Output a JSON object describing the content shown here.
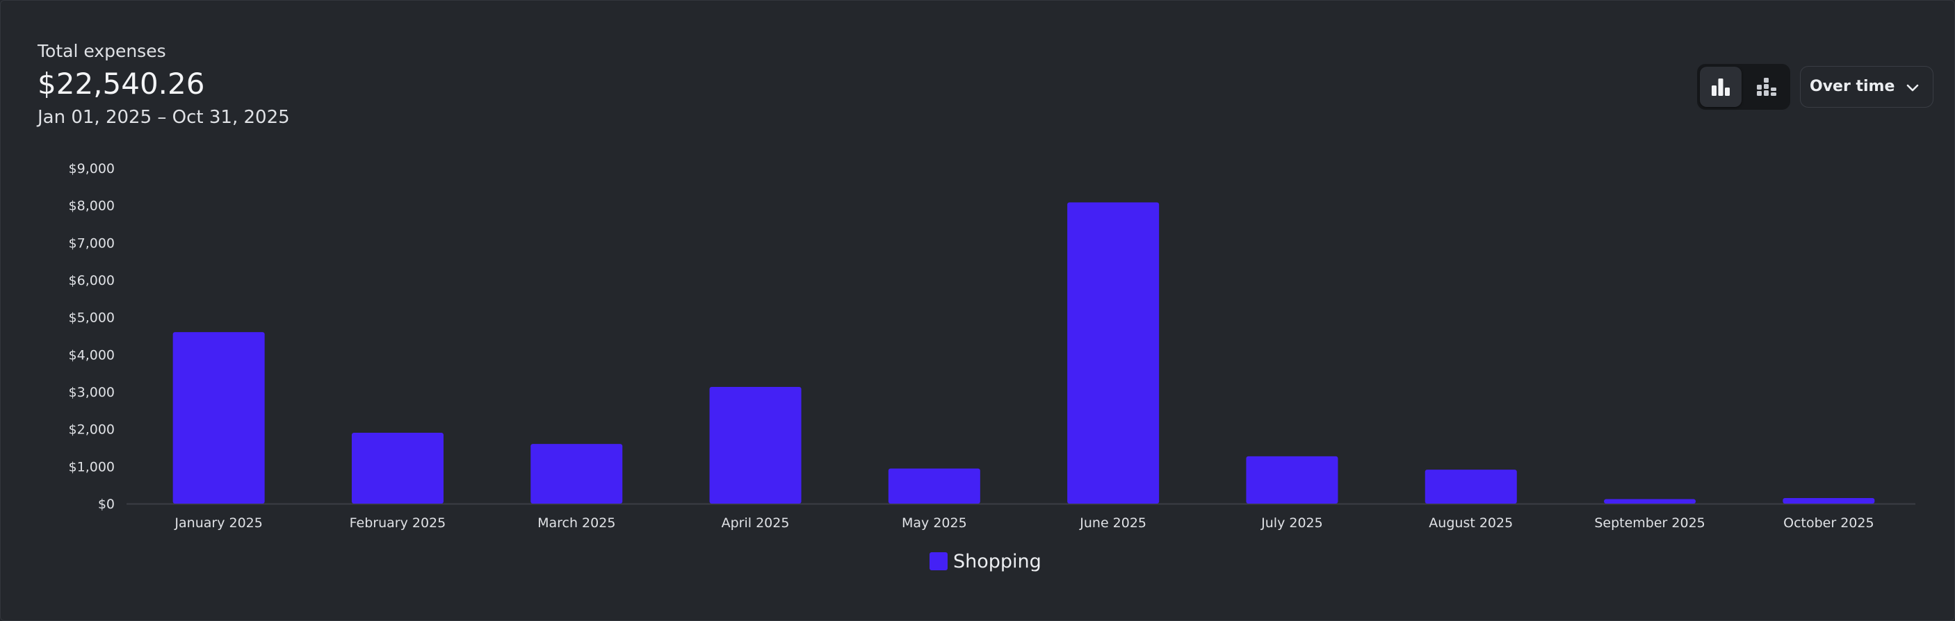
{
  "summary": {
    "label": "Total expenses",
    "amount": "$22,540.26",
    "date_range": "Jan 01, 2025 – Oct 31, 2025"
  },
  "controls": {
    "view_toggle": [
      {
        "icon": "bar-chart-icon",
        "active": true
      },
      {
        "icon": "stacked-bar-chart-icon",
        "active": false
      }
    ],
    "grouping_select": {
      "value": "Over time",
      "icon": "chevron-down-icon"
    }
  },
  "chart_data": {
    "type": "bar",
    "categories": [
      "January 2025",
      "February 2025",
      "March 2025",
      "April 2025",
      "May 2025",
      "June 2025",
      "July 2025",
      "August 2025",
      "September 2025",
      "October 2025"
    ],
    "series": [
      {
        "name": "Shopping",
        "color": "#4421f5",
        "values": [
          4600,
          1900,
          1600,
          3130,
          940,
          8080,
          1270,
          910,
          120,
          150
        ]
      }
    ],
    "ylim": [
      0,
      9000
    ],
    "y_ticks": [
      0,
      1000,
      2000,
      3000,
      4000,
      5000,
      6000,
      7000,
      8000,
      9000
    ],
    "y_tick_labels": [
      "$0",
      "$1,000",
      "$2,000",
      "$3,000",
      "$4,000",
      "$5,000",
      "$6,000",
      "$7,000",
      "$8,000",
      "$9,000"
    ],
    "grid": false,
    "legend": "bottom-center"
  }
}
